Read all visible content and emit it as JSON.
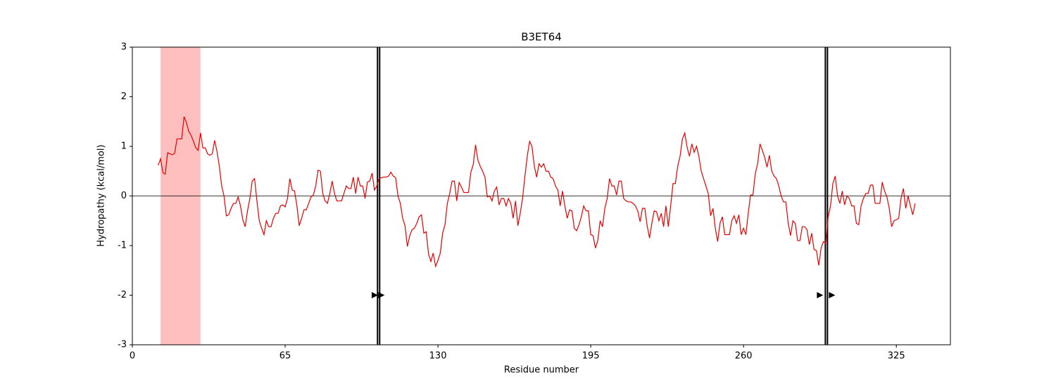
{
  "chart_data": {
    "type": "line",
    "title": "B3ET64",
    "xlabel": "Residue number",
    "ylabel": "Hydropathy (kcal/mol)",
    "color": "#e60000",
    "x": [
      11,
      12,
      13,
      14,
      15,
      16,
      17,
      18,
      19,
      20,
      21,
      22,
      23,
      24,
      25,
      26,
      27,
      28,
      29,
      30,
      31,
      32,
      33,
      34,
      35,
      36,
      37,
      38,
      39,
      40,
      41,
      42,
      43,
      44,
      45,
      46,
      47,
      48,
      49,
      50,
      51,
      52,
      53,
      54,
      55,
      56,
      57,
      58,
      59,
      60,
      61,
      62,
      63,
      64,
      65,
      66,
      67,
      68,
      69,
      70,
      71,
      72,
      73,
      74,
      75,
      76,
      77,
      78,
      79,
      80,
      81,
      82,
      83,
      84,
      85,
      86,
      87,
      88,
      89,
      90,
      91,
      92,
      93,
      94,
      95,
      96,
      97,
      98,
      99,
      100,
      101,
      102,
      103,
      104,
      105,
      106,
      107,
      108,
      109,
      110,
      111,
      112,
      113,
      114,
      115,
      116,
      117,
      118,
      119,
      120,
      121,
      122,
      123,
      124,
      125,
      126,
      127,
      128,
      129,
      130,
      131,
      132,
      133,
      134,
      135,
      136,
      137,
      138,
      139,
      140,
      141,
      142,
      143,
      144,
      145,
      146,
      147,
      148,
      149,
      150,
      151,
      152,
      153,
      154,
      155,
      156,
      157,
      158,
      159,
      160,
      161,
      162,
      163,
      164,
      165,
      166,
      167,
      168,
      169,
      170,
      171,
      172,
      173,
      174,
      175,
      176,
      177,
      178,
      179,
      180,
      181,
      182,
      183,
      184,
      185,
      186,
      187,
      188,
      189,
      190,
      191,
      192,
      193,
      194,
      195,
      196,
      197,
      198,
      199,
      200,
      201,
      202,
      203,
      204,
      205,
      206,
      207,
      208,
      209,
      210,
      211,
      212,
      213,
      214,
      215,
      216,
      217,
      218,
      219,
      220,
      221,
      222,
      223,
      224,
      225,
      226,
      227,
      228,
      229,
      230,
      231,
      232,
      233,
      234,
      235,
      236,
      237,
      238,
      239,
      240,
      241,
      242,
      243,
      244,
      245,
      246,
      247,
      248,
      249,
      250,
      251,
      252,
      253,
      254,
      255,
      256,
      257,
      258,
      259,
      260,
      261,
      262,
      263,
      264,
      265,
      266,
      267,
      268,
      269,
      270,
      271,
      272,
      273,
      274,
      275,
      276,
      277,
      278,
      279,
      280,
      281,
      282,
      283,
      284,
      285,
      286,
      287,
      288,
      289,
      290,
      291,
      292,
      293,
      294,
      295,
      296,
      297,
      298,
      299,
      300,
      301,
      302,
      303,
      304,
      305,
      306,
      307,
      308,
      309,
      310,
      311,
      312,
      313,
      314,
      315,
      316,
      317,
      318,
      319,
      320,
      321,
      322,
      323,
      324,
      325,
      326,
      327,
      328,
      329,
      330,
      331,
      332,
      333
    ],
    "values": [
      0.62,
      0.75,
      0.47,
      0.44,
      0.87,
      0.85,
      0.83,
      0.86,
      1.15,
      1.15,
      1.15,
      1.6,
      1.48,
      1.3,
      1.22,
      1.1,
      0.97,
      0.92,
      1.27,
      0.97,
      0.97,
      0.85,
      0.82,
      0.85,
      1.12,
      0.9,
      0.6,
      0.2,
      0.0,
      -0.4,
      -0.38,
      -0.25,
      -0.15,
      -0.15,
      -0.02,
      -0.2,
      -0.48,
      -0.62,
      -0.3,
      -0.05,
      0.3,
      0.35,
      -0.1,
      -0.5,
      -0.65,
      -0.78,
      -0.5,
      -0.62,
      -0.62,
      -0.45,
      -0.35,
      -0.35,
      -0.2,
      -0.18,
      -0.22,
      -0.05,
      0.35,
      0.12,
      0.1,
      -0.2,
      -0.6,
      -0.45,
      -0.28,
      -0.28,
      -0.15,
      -0.02,
      0.02,
      0.2,
      0.52,
      0.5,
      0.05,
      -0.1,
      -0.15,
      0.05,
      0.3,
      0.05,
      -0.1,
      -0.1,
      -0.1,
      0.05,
      0.2,
      0.15,
      0.15,
      0.38,
      0.05,
      0.38,
      0.2,
      0.2,
      -0.05,
      0.28,
      0.3,
      0.46,
      0.12,
      0.2,
      0.35,
      0.37,
      0.38,
      0.38,
      0.4,
      0.48,
      0.4,
      0.37,
      0.0,
      -0.15,
      -0.45,
      -0.6,
      -1.02,
      -0.8,
      -0.68,
      -0.65,
      -0.55,
      -0.42,
      -0.38,
      -0.75,
      -0.72,
      -1.17,
      -1.32,
      -1.15,
      -1.42,
      -1.3,
      -1.15,
      -0.75,
      -0.58,
      -0.15,
      0.05,
      0.3,
      0.3,
      -0.1,
      0.27,
      0.18,
      0.07,
      0.07,
      0.07,
      0.48,
      0.63,
      1.03,
      0.72,
      0.6,
      0.5,
      0.38,
      -0.02,
      0.0,
      -0.1,
      0.1,
      0.18,
      -0.18,
      -0.05,
      -0.05,
      -0.2,
      -0.05,
      -0.15,
      -0.45,
      -0.1,
      -0.6,
      -0.35,
      -0.05,
      0.4,
      0.8,
      1.1,
      1.0,
      0.6,
      0.38,
      0.65,
      0.58,
      0.65,
      0.5,
      0.5,
      0.38,
      0.35,
      0.2,
      0.12,
      -0.2,
      0.1,
      -0.2,
      -0.45,
      -0.28,
      -0.3,
      -0.65,
      -0.7,
      -0.58,
      -0.42,
      -0.2,
      -0.3,
      -0.3,
      -0.78,
      -0.8,
      -1.05,
      -0.9,
      -0.5,
      -0.62,
      -0.25,
      -0.05,
      0.35,
      0.2,
      0.2,
      0.02,
      0.3,
      0.3,
      -0.05,
      -0.1,
      -0.12,
      -0.12,
      -0.15,
      -0.2,
      -0.3,
      -0.52,
      -0.25,
      -0.25,
      -0.6,
      -0.85,
      -0.55,
      -0.3,
      -0.32,
      -0.5,
      -0.35,
      -0.62,
      -0.2,
      -0.62,
      -0.2,
      0.25,
      0.25,
      0.6,
      0.8,
      1.15,
      1.27,
      0.98,
      0.8,
      1.05,
      0.88,
      1.0,
      0.8,
      0.5,
      0.35,
      0.2,
      0.05,
      -0.4,
      -0.25,
      -0.65,
      -0.92,
      -0.55,
      -0.42,
      -0.78,
      -0.78,
      -0.78,
      -0.5,
      -0.4,
      -0.55,
      -0.38,
      -0.78,
      -0.65,
      -0.78,
      -0.35,
      0.02,
      0.02,
      0.45,
      0.65,
      1.05,
      0.92,
      0.78,
      0.58,
      0.82,
      0.5,
      0.4,
      0.35,
      0.2,
      0.0,
      -0.12,
      -0.12,
      -0.55,
      -0.8,
      -0.5,
      -0.55,
      -0.9,
      -0.9,
      -0.62,
      -0.62,
      -0.68,
      -0.98,
      -0.75,
      -1.08,
      -1.1,
      -1.4,
      -1.05,
      -0.92,
      -0.95,
      -0.42,
      -0.2,
      0.25,
      0.4,
      0.0,
      -0.15,
      0.1,
      -0.18,
      0.0,
      -0.05,
      -0.2,
      -0.2,
      -0.55,
      -0.58,
      -0.2,
      -0.05,
      0.05,
      0.05,
      0.22,
      0.22,
      -0.15,
      -0.15,
      -0.15,
      0.28,
      0.1,
      -0.02,
      -0.25,
      -0.62,
      -0.5,
      -0.48,
      -0.45,
      -0.05,
      0.15,
      -0.25,
      0.0,
      -0.2,
      -0.38,
      -0.15
    ],
    "xlim": [
      0,
      348
    ],
    "xticks": [
      0,
      65,
      130,
      195,
      260,
      325
    ],
    "ylim": [
      -3,
      3
    ],
    "yticks": [
      -3,
      -2,
      -1,
      0,
      1,
      2,
      3
    ],
    "hline": 0,
    "highlight": [
      12,
      29
    ],
    "highlight_color": "#ffbfbf",
    "vlines": [
      104.3,
      105.2,
      294.8,
      295.7
    ],
    "markers": {
      "x": [
        103,
        105.8,
        292.4,
        297.5
      ],
      "y": [
        -2,
        -2,
        -2,
        -2
      ]
    }
  }
}
